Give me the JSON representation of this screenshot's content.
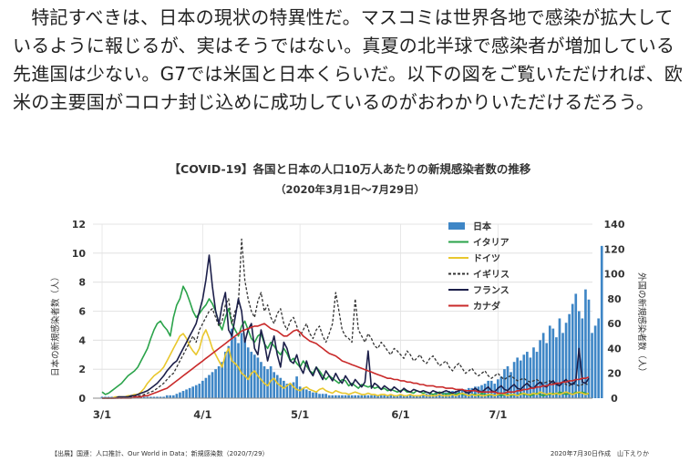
{
  "article": {
    "text": "　特記すべきは、日本の現状の特異性だ。マスコミは世界各地で感染が拡大しているように報じるが、実はそうではない。真夏の北半球で感染者が増加している先進国は少ない。G7では米国と日本くらいだ。以下の図をご覧いただければ、欧米の主要国がコロナ封じ込めに成功しているのがおわかりいただけるだろう。"
  },
  "chart_data": {
    "type": "bar+line",
    "title": "【COVID-19】各国と日本の人口10万人あたりの新規感染者数の推移",
    "subtitle": "（2020年3月1日〜7月29日）",
    "ylabel_left": "日本の新規感染者数（人）",
    "ylabel_right": "外国の新規感染者数（人）",
    "ylim_left": [
      0,
      12
    ],
    "ylim_right": [
      0,
      140
    ],
    "yticks_left": [
      "0",
      "2",
      "4",
      "6",
      "8",
      "10",
      "12"
    ],
    "yticks_right": [
      "0",
      "20",
      "40",
      "60",
      "80",
      "100",
      "120",
      "140"
    ],
    "x_ticks": [
      "3/1",
      "4/1",
      "5/1",
      "6/1",
      "7/1"
    ],
    "source": "【出展】国連：人口推計、Our World in Data：新規感染数（2020/7/29）",
    "credit": "2020年7月30日作成　山下えりか",
    "legend_position": "top-right",
    "x_dates": {
      "start": "3/1",
      "end": "7/29",
      "days": 151
    },
    "series": [
      {
        "name": "日本",
        "kind": "bar",
        "axis": "left",
        "color": "#3e86c6",
        "values": [
          0.1,
          0.1,
          0.1,
          0.1,
          0.1,
          0.1,
          0.1,
          0.1,
          0.1,
          0.1,
          0.1,
          0.1,
          0.1,
          0.1,
          0.1,
          0.1,
          0.1,
          0.1,
          0.1,
          0.1,
          0.2,
          0.2,
          0.2,
          0.3,
          0.4,
          0.5,
          0.6,
          0.7,
          0.8,
          0.9,
          1.0,
          1.2,
          1.4,
          1.6,
          1.8,
          2.0,
          2.2,
          2.5,
          3.2,
          3.6,
          4.8,
          4.2,
          3.8,
          4.5,
          4.0,
          3.5,
          3.2,
          3.0,
          2.8,
          2.5,
          2.2,
          2.0,
          2.2,
          1.8,
          1.6,
          1.4,
          1.2,
          1.0,
          1.0,
          1.1,
          1.5,
          0.8,
          0.7,
          0.6,
          0.5,
          0.4,
          0.4,
          0.3,
          0.3,
          0.3,
          0.2,
          0.2,
          0.2,
          0.2,
          0.2,
          0.2,
          0.2,
          0.2,
          0.2,
          0.2,
          0.2,
          0.2,
          0.2,
          0.2,
          0.2,
          0.2,
          0.2,
          0.2,
          0.2,
          0.2,
          0.2,
          0.2,
          0.2,
          0.2,
          0.2,
          0.2,
          0.2,
          0.2,
          0.2,
          0.2,
          0.3,
          0.3,
          0.3,
          0.4,
          0.4,
          0.4,
          0.4,
          0.5,
          0.5,
          0.5,
          0.6,
          0.6,
          0.6,
          0.7,
          0.7,
          0.8,
          0.8,
          0.9,
          1.0,
          1.2,
          1.2,
          1.0,
          1.3,
          1.5,
          2.0,
          2.2,
          1.8,
          2.5,
          2.8,
          2.6,
          3.0,
          3.2,
          2.8,
          3.5,
          3.2,
          4.0,
          4.5,
          3.8,
          5.0,
          4.8,
          4.2,
          5.5,
          4.5,
          5.2,
          5.8,
          6.5,
          7.2,
          6.0,
          5.5,
          7.5,
          6.8,
          4.5,
          5.0,
          5.5,
          10.5
        ]
      },
      {
        "name": "イタリア",
        "kind": "line",
        "axis": "right",
        "color": "#2aa34a",
        "values": [
          5,
          3,
          4,
          6,
          8,
          10,
          12,
          15,
          18,
          20,
          22,
          25,
          30,
          35,
          40,
          48,
          55,
          60,
          62,
          58,
          55,
          50,
          65,
          75,
          80,
          90,
          85,
          78,
          70,
          65,
          68,
          72,
          75,
          80,
          76,
          70,
          60,
          55,
          65,
          72,
          60,
          55,
          50,
          58,
          62,
          55,
          48,
          45,
          50,
          52,
          44,
          40,
          45,
          42,
          38,
          35,
          40,
          36,
          30,
          32,
          28,
          25,
          30,
          26,
          22,
          20,
          25,
          22,
          18,
          15,
          18,
          16,
          14,
          12,
          15,
          14,
          10,
          12,
          10,
          8,
          11,
          10,
          9,
          10,
          8,
          9,
          7,
          8,
          6,
          7,
          6,
          5,
          6,
          7,
          5,
          5,
          4,
          6,
          5,
          4,
          5,
          4,
          3,
          4,
          5,
          4,
          3,
          4,
          3,
          3,
          4,
          3,
          3,
          2,
          3,
          3,
          2,
          4,
          3,
          2,
          3,
          2,
          3,
          2,
          3,
          3,
          2,
          3,
          2,
          4,
          3,
          3,
          2,
          3,
          4,
          3,
          2,
          3,
          3,
          4,
          3,
          5,
          4,
          3,
          4,
          3,
          5,
          4,
          5,
          4,
          3
        ]
      },
      {
        "name": "ドイツ",
        "kind": "line",
        "axis": "right",
        "color": "#e9c72d",
        "values": [
          0,
          0,
          0,
          0,
          1,
          1,
          1,
          1,
          2,
          2,
          3,
          3,
          5,
          8,
          12,
          15,
          18,
          20,
          22,
          25,
          30,
          35,
          40,
          45,
          50,
          52,
          48,
          42,
          38,
          35,
          40,
          50,
          55,
          48,
          40,
          35,
          30,
          25,
          35,
          40,
          30,
          28,
          25,
          20,
          18,
          15,
          20,
          22,
          18,
          15,
          12,
          10,
          14,
          16,
          12,
          10,
          8,
          10,
          12,
          9,
          7,
          6,
          8,
          9,
          7,
          6,
          5,
          7,
          8,
          6,
          5,
          4,
          6,
          5,
          4,
          4,
          3,
          4,
          5,
          4,
          3,
          3,
          4,
          3,
          3,
          2,
          3,
          3,
          2,
          3,
          2,
          2,
          3,
          2,
          2,
          3,
          2,
          2,
          2,
          3,
          2,
          2,
          2,
          2,
          3,
          2,
          2,
          2,
          3,
          2,
          3,
          4,
          3,
          2,
          3,
          2,
          3,
          2,
          2,
          3,
          3,
          2,
          3,
          4,
          3,
          2,
          3,
          3,
          2,
          3,
          4,
          3,
          3,
          4,
          3,
          5,
          4,
          3,
          4,
          3,
          4,
          3,
          4,
          5,
          4,
          3,
          4,
          5,
          4,
          3,
          4
        ]
      },
      {
        "name": "イギリス",
        "kind": "dashed",
        "axis": "right",
        "color": "#333333",
        "values": [
          0,
          0,
          0,
          0,
          0,
          0,
          0,
          1,
          1,
          1,
          1,
          2,
          2,
          3,
          4,
          5,
          6,
          8,
          10,
          12,
          15,
          18,
          20,
          25,
          30,
          35,
          40,
          45,
          50,
          45,
          55,
          60,
          65,
          70,
          72,
          65,
          58,
          62,
          75,
          80,
          60,
          70,
          75,
          128,
          95,
          80,
          70,
          65,
          78,
          85,
          70,
          75,
          65,
          60,
          68,
          72,
          60,
          55,
          62,
          65,
          58,
          50,
          55,
          60,
          52,
          48,
          55,
          58,
          50,
          45,
          52,
          60,
          85,
          70,
          55,
          50,
          48,
          45,
          80,
          55,
          50,
          45,
          52,
          48,
          42,
          40,
          45,
          42,
          38,
          35,
          40,
          38,
          35,
          32,
          38,
          35,
          30,
          32,
          35,
          30,
          28,
          32,
          34,
          30,
          26,
          28,
          30,
          25,
          22,
          26,
          28,
          24,
          20,
          22,
          24,
          20,
          18,
          20,
          22,
          18,
          16,
          18,
          20,
          17,
          15,
          17,
          18,
          16,
          14,
          15,
          16,
          14,
          13,
          14,
          15,
          13,
          12,
          13,
          14,
          12,
          11,
          12,
          13,
          11,
          10,
          12,
          11,
          10,
          11,
          12,
          10
        ]
      },
      {
        "name": "フランス",
        "kind": "line",
        "axis": "right",
        "color": "#1c1f4a",
        "values": [
          0,
          0,
          0,
          0,
          0,
          1,
          1,
          1,
          1,
          2,
          2,
          3,
          4,
          5,
          6,
          8,
          10,
          12,
          15,
          18,
          22,
          25,
          28,
          30,
          35,
          40,
          45,
          50,
          55,
          60,
          70,
          80,
          95,
          115,
          90,
          70,
          60,
          75,
          85,
          55,
          50,
          65,
          80,
          70,
          45,
          55,
          60,
          40,
          35,
          55,
          45,
          30,
          40,
          50,
          35,
          25,
          45,
          40,
          30,
          28,
          35,
          25,
          20,
          30,
          22,
          18,
          25,
          20,
          15,
          22,
          18,
          14,
          20,
          15,
          12,
          18,
          14,
          10,
          15,
          12,
          9,
          13,
          38,
          8,
          12,
          10,
          7,
          10,
          8,
          6,
          9,
          7,
          5,
          8,
          6,
          5,
          7,
          6,
          5,
          6,
          5,
          4,
          6,
          5,
          4,
          5,
          6,
          5,
          4,
          5,
          6,
          7,
          5,
          4,
          6,
          8,
          6,
          5,
          7,
          9,
          6,
          5,
          8,
          10,
          7,
          6,
          9,
          11,
          8,
          7,
          10,
          12,
          9,
          8,
          11,
          13,
          10,
          9,
          12,
          14,
          11,
          10,
          13,
          15,
          12,
          11,
          14,
          40,
          13,
          12,
          16
        ]
      },
      {
        "name": "カナダ",
        "kind": "line",
        "axis": "right",
        "color": "#c92a2a",
        "values": [
          0,
          0,
          0,
          0,
          0,
          0,
          0,
          0,
          0,
          0,
          1,
          1,
          1,
          2,
          2,
          3,
          4,
          5,
          6,
          7,
          8,
          10,
          12,
          14,
          16,
          18,
          20,
          22,
          24,
          26,
          28,
          30,
          32,
          34,
          36,
          38,
          40,
          42,
          44,
          46,
          48,
          50,
          52,
          54,
          55,
          56,
          57,
          58,
          58,
          59,
          60,
          58,
          56,
          55,
          54,
          52,
          50,
          50,
          52,
          54,
          55,
          53,
          50,
          48,
          46,
          45,
          44,
          42,
          40,
          38,
          36,
          35,
          34,
          32,
          30,
          29,
          28,
          27,
          26,
          25,
          24,
          23,
          22,
          21,
          20,
          19,
          18,
          17,
          16,
          16,
          15,
          15,
          14,
          14,
          13,
          13,
          12,
          12,
          11,
          11,
          10,
          10,
          10,
          9,
          9,
          9,
          8,
          8,
          8,
          7,
          7,
          7,
          6,
          6,
          6,
          6,
          5,
          5,
          5,
          5,
          5,
          5,
          4,
          4,
          4,
          5,
          5,
          5,
          6,
          6,
          7,
          7,
          8,
          8,
          9,
          9,
          10,
          10,
          11,
          11,
          12,
          12,
          13,
          13,
          14,
          14,
          15,
          15,
          16,
          16,
          17
        ]
      }
    ]
  }
}
